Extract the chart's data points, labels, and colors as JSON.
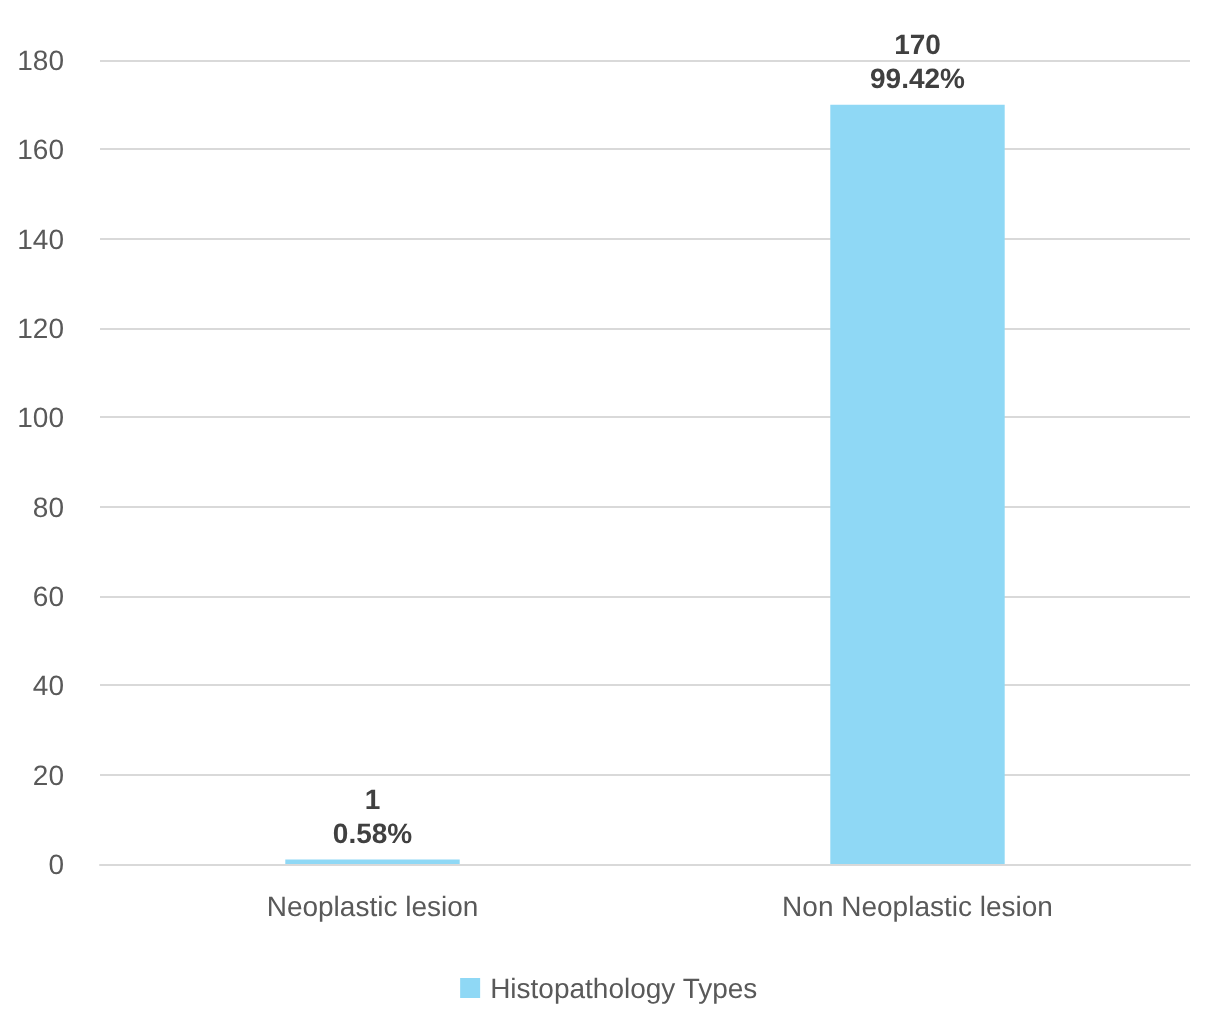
{
  "chart_data": {
    "type": "bar",
    "categories": [
      "Neoplastic lesion",
      "Non Neoplastic lesion"
    ],
    "series": [
      {
        "name": "Histopathology Types",
        "color": "#8fd8f5",
        "values": [
          1,
          170
        ],
        "value_labels": [
          "1\n0.58%",
          "170\n99.42%"
        ]
      }
    ],
    "ylim": [
      0,
      180
    ],
    "yticks": [
      0,
      20,
      40,
      60,
      80,
      100,
      120,
      140,
      160,
      180
    ],
    "grid": "y",
    "legend": "bottom"
  }
}
